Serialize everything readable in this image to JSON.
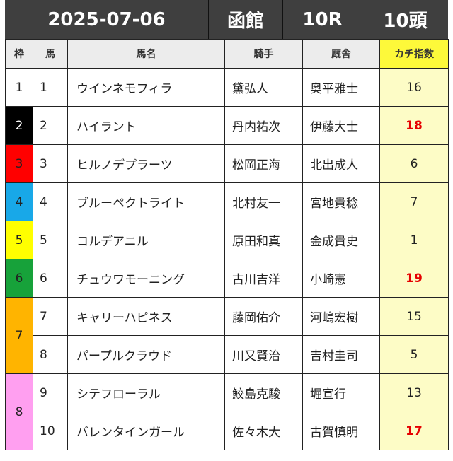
{
  "header": {
    "date": "2025-07-06",
    "venue": "函館",
    "race": "10R",
    "field_size": "10頭"
  },
  "columns": {
    "waku": "枠",
    "uma": "馬",
    "horse": "馬名",
    "jockey": "騎手",
    "trainer": "厩舎",
    "score": "カチ指数"
  },
  "colors": {
    "waku_1": "#ffffff",
    "waku_2": "#000000",
    "waku_3": "#ff0000",
    "waku_4": "#18a8e8",
    "waku_5": "#ffff00",
    "waku_6": "#17a23a",
    "waku_7": "#ffb400",
    "waku_8": "#ff9ff0",
    "highlight_score": "#e60000",
    "score_bg": "#fdfcc6",
    "score_header_bg": "#fdf93a"
  },
  "rows": [
    {
      "waku": "1",
      "uma": "1",
      "horse": "ウインネモフィラ",
      "jockey": "黛弘人",
      "trainer": "奥平雅士",
      "score": "16"
    },
    {
      "waku": "2",
      "uma": "2",
      "horse": "ハイラント",
      "jockey": "丹内祐次",
      "trainer": "伊藤大士",
      "score": "18"
    },
    {
      "waku": "3",
      "uma": "3",
      "horse": "ヒルノデプラーツ",
      "jockey": "松岡正海",
      "trainer": "北出成人",
      "score": "6"
    },
    {
      "waku": "4",
      "uma": "4",
      "horse": "ブルーペクトライト",
      "jockey": "北村友一",
      "trainer": "宮地貴稔",
      "score": "7"
    },
    {
      "waku": "5",
      "uma": "5",
      "horse": "コルデアニル",
      "jockey": "原田和真",
      "trainer": "金成貴史",
      "score": "1"
    },
    {
      "waku": "6",
      "uma": "6",
      "horse": "チュウワモーニング",
      "jockey": "古川吉洋",
      "trainer": "小崎憲",
      "score": "19"
    },
    {
      "waku": "7",
      "uma": "7",
      "horse": "キャリーハピネス",
      "jockey": "藤岡佑介",
      "trainer": "河嶋宏樹",
      "score": "15"
    },
    {
      "waku": "7",
      "uma": "8",
      "horse": "パープルクラウド",
      "jockey": "川又賢治",
      "trainer": "吉村圭司",
      "score": "5"
    },
    {
      "waku": "8",
      "uma": "9",
      "horse": "シテフローラル",
      "jockey": "鮫島克駿",
      "trainer": "堀宣行",
      "score": "13"
    },
    {
      "waku": "8",
      "uma": "10",
      "horse": "バレンタインガール",
      "jockey": "佐々木大",
      "trainer": "古賀慎明",
      "score": "17"
    }
  ]
}
